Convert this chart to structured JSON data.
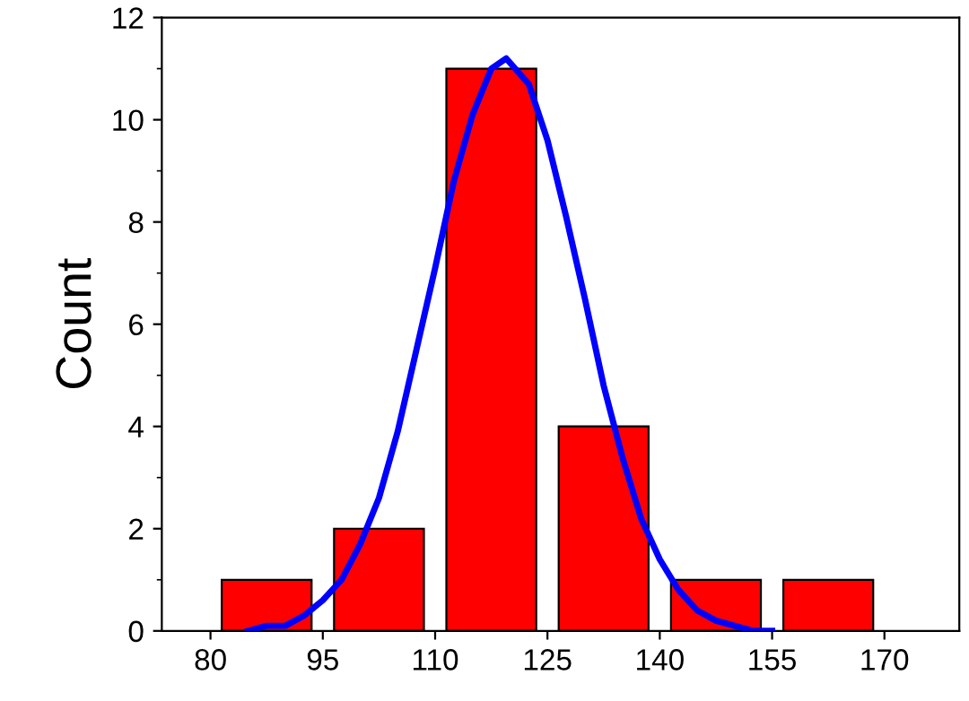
{
  "chart_data": {
    "type": "histogram",
    "ylabel": "Count",
    "bins": [
      80,
      95,
      110,
      125,
      140,
      155,
      170
    ],
    "values": [
      1,
      2,
      11,
      4,
      1,
      1
    ],
    "color": "#ff0000",
    "series": [
      {
        "type": "line",
        "color": "#0000ff",
        "x": [
          85,
          87.5,
          90,
          92.5,
          95,
          97.5,
          100,
          102.5,
          105,
          107.5,
          110,
          112.5,
          115,
          117.5,
          119.5,
          122.5,
          125,
          127.5,
          130,
          132.5,
          135,
          137.5,
          140,
          142.5,
          145,
          147.5,
          150,
          152.5,
          155
        ],
        "values": [
          0.0,
          0.1,
          0.1,
          0.3,
          0.6,
          1.0,
          1.7,
          2.6,
          3.9,
          5.5,
          7.1,
          8.8,
          10.1,
          11.0,
          11.2,
          10.7,
          9.6,
          8.1,
          6.5,
          4.8,
          3.4,
          2.2,
          1.4,
          0.8,
          0.4,
          0.2,
          0.1,
          0.0,
          0.0
        ]
      }
    ],
    "xlim": [
      73.5,
      180
    ],
    "xticks": [
      80,
      95,
      110,
      125,
      140,
      155,
      170
    ],
    "ylim": [
      0,
      12
    ],
    "yticks": [
      0,
      2,
      4,
      6,
      8,
      10,
      12
    ],
    "grid": false,
    "legend": false,
    "marker": "none",
    "line_style": "solid"
  }
}
